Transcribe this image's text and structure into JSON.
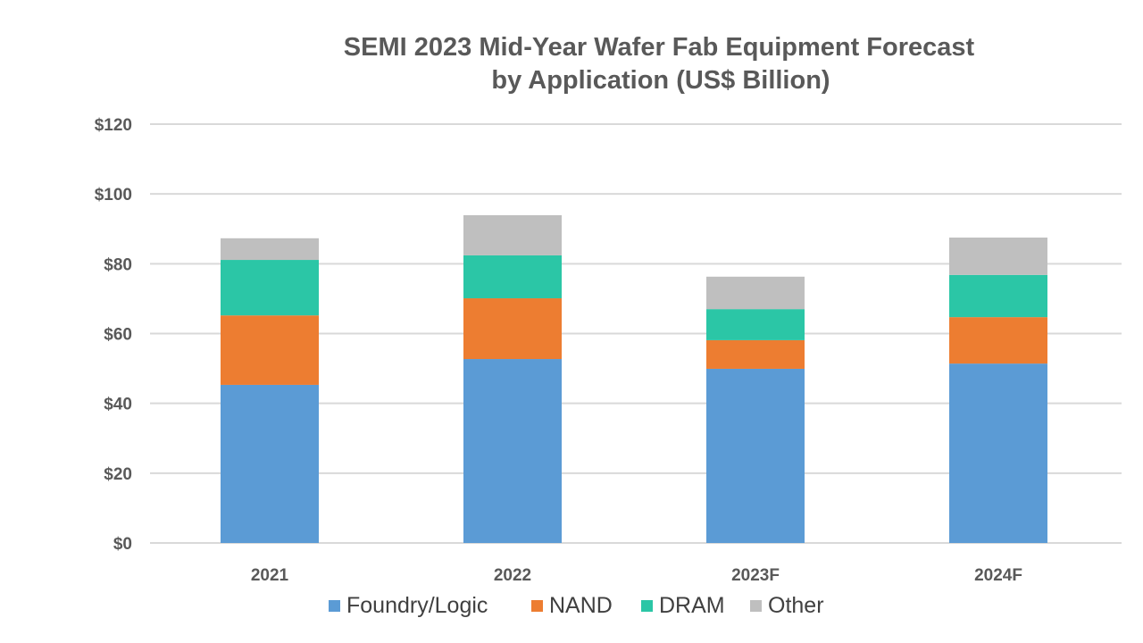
{
  "chart_data": {
    "type": "bar",
    "stacked": true,
    "title": "SEMI 2023 Mid-Year Wafer Fab Equipment Forecast",
    "subtitle": "by Application (US$ Billion)",
    "xlabel": "",
    "ylabel": "",
    "categories": [
      "2021",
      "2022",
      "2023F",
      "2024F"
    ],
    "series": [
      {
        "name": "Foundry/Logic",
        "color": "#5B9BD5",
        "values": [
          45.3,
          52.7,
          49.9,
          51.4
        ]
      },
      {
        "name": "NAND",
        "color": "#ED7D31",
        "values": [
          19.9,
          17.4,
          8.2,
          13.3
        ]
      },
      {
        "name": "DRAM",
        "color": "#2BC6A6",
        "values": [
          15.9,
          12.3,
          8.9,
          12.1
        ]
      },
      {
        "name": "Other",
        "color": "#BFBFBF",
        "values": [
          6.2,
          11.5,
          9.3,
          10.7
        ]
      }
    ],
    "yticks": [
      0,
      20,
      40,
      60,
      80,
      100,
      120
    ],
    "ytick_labels": [
      "$0",
      "$20",
      "$40",
      "$60",
      "$80",
      "$100",
      "$120"
    ],
    "ylim": [
      0,
      120
    ],
    "grid": true,
    "legend_position": "bottom"
  }
}
